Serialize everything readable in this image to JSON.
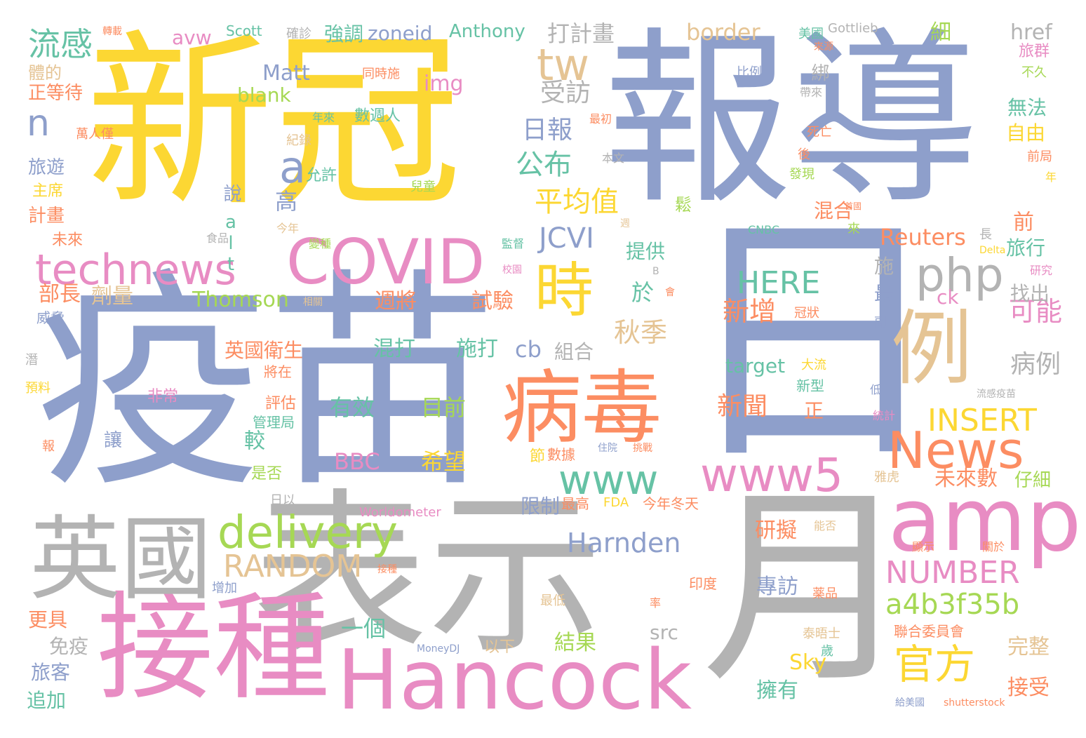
{
  "colors": {
    "yellow": "#fcd733",
    "periwinkle": "#8e9fcb",
    "pink": "#e88cc3",
    "grey": "#b3b3b3",
    "orange": "#fc8d62",
    "lime": "#a6d854",
    "teal": "#66c2a5",
    "tan": "#e5c494",
    "background": "#ffffff"
  },
  "words": {
    "w001": "新冠",
    "w002": "報導",
    "w003": "疫苗",
    "w004": "日",
    "w005": "表示",
    "w006": "月",
    "w007": "接種",
    "w008": "英國",
    "w009": "Hancock",
    "w010": "病毒",
    "w011": "例",
    "w012": "amp",
    "w013": "COVID",
    "w014": "technews",
    "w015": "時",
    "w016": "News",
    "w017": "www5",
    "w018": "www",
    "w019": "delivery",
    "w020": "php",
    "w021": "tw",
    "w022": "a",
    "w023": "n",
    "w024": "流感",
    "w025": "RANDOM",
    "w026": "官方",
    "w027": "a4b3f35b",
    "w028": "NUMBER",
    "w029": "INSERT",
    "w030": "Harnden",
    "w031": "公布",
    "w032": "日報",
    "w033": "受訪",
    "w034": "平均值",
    "w035": "JCVI",
    "w036": "打計畫",
    "w037": "border",
    "w038": "HERE",
    "w039": "新增",
    "w040": "新聞",
    "w041": "秋季",
    "w042": "可能",
    "w043": "病例",
    "w044": "cb",
    "w045": "組合",
    "w046": "英國衛生",
    "w047": "Reuters",
    "w048": "zoneid",
    "w049": "Anthony",
    "w050": "Matt",
    "w051": "img",
    "w052": "blank",
    "w053": "avw",
    "w054": "強調",
    "w055": "target",
    "w056": "Thomson",
    "w057": "混打",
    "w058": "施打",
    "w059": "週將",
    "w060": "試驗",
    "w061": "有效",
    "w062": "目前",
    "w063": "BBC",
    "w064": "希望",
    "w065": "一個",
    "w066": "結果",
    "w067": "專訪",
    "w068": "研擬",
    "w069": "Sky",
    "w070": "擁有",
    "w071": "未來數",
    "w072": "仔細",
    "w073": "完整",
    "w074": "接受",
    "w075": "限制",
    "w076": "今年冬天",
    "w077": "FDA",
    "w078": "最高",
    "w079": "src",
    "w080": "高",
    "w081": "說",
    "w082": "alt",
    "w083": "提供",
    "w084": "於",
    "w085": "較",
    "w086": "節",
    "w087": "數據",
    "w088": "正等待",
    "w089": "體的",
    "w090": "旅遊",
    "w091": "主席",
    "w092": "計畫",
    "w093": "未來",
    "w094": "部長",
    "w095": "劑量",
    "w096": "威脅",
    "w097": "更具",
    "w098": "免疫",
    "w099": "旅客",
    "w100": "追加",
    "w101": "非常",
    "w102": "評估",
    "w103": "管理局",
    "w104": "讓",
    "w105": "是否",
    "w106": "將在",
    "w107": "日以",
    "w108": "Worldometer",
    "w109": "MoneyDJ",
    "w110": "以下",
    "w111": "數週人",
    "w112": "年來",
    "w113": "同時施",
    "w114": "允許",
    "w115": "兒童",
    "w116": "紀錄",
    "w117": "萬人僅",
    "w118": "轉載",
    "w119": "Scott",
    "w120": "確診",
    "w121": "美國",
    "w122": "Gottlieb",
    "w123": "href",
    "w124": "細",
    "w125": "旅群",
    "w126": "不久",
    "w127": "無法",
    "w128": "自由",
    "w129": "前局",
    "w130": "年",
    "w131": "前",
    "w132": "旅行",
    "w133": "研究",
    "w134": "找出",
    "w135": "最",
    "w136": "施",
    "w137": "ck",
    "w138": "冠狀",
    "w139": "大流",
    "w140": "新型",
    "w141": "正",
    "w142": "CNBC",
    "w143": "Delta",
    "w144": "長",
    "w145": "混合",
    "w146": "鬆",
    "w147": "綁",
    "w148": "死亡",
    "w149": "後",
    "w150": "發現",
    "w151": "比例",
    "w152": "帶來",
    "w153": "來源",
    "w154": "最初",
    "w155": "本文",
    "w156": "今年",
    "w157": "食品",
    "w158": "監督",
    "w159": "變種",
    "w160": "校園",
    "w161": "相關",
    "w162": "會",
    "w163": "B",
    "w164": "週",
    "w165": "來",
    "w166": "首國",
    "w167": "副",
    "w168": "統計",
    "w169": "低",
    "w170": "流感疫苗",
    "w171": "雅虎",
    "w172": "能否",
    "w173": "顯示",
    "w174": "關於",
    "w175": "薬品",
    "w176": "泰晤士",
    "w177": "歲",
    "w178": "聯合委員會",
    "w179": "給美國",
    "w180": "shutterstock",
    "w181": "最低",
    "w182": "印度",
    "w183": "率",
    "w184": "增加",
    "w185": "接種",
    "w186": "挑戰",
    "w187": "住院",
    "w188": "潛",
    "w189": "預料",
    "w190": "報"
  }
}
